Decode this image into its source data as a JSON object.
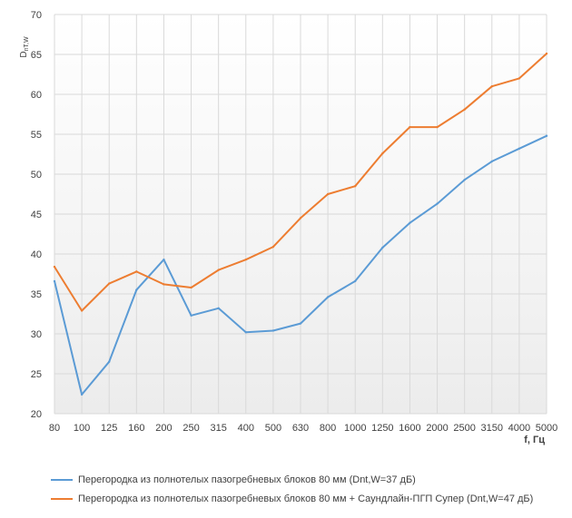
{
  "chart_data": {
    "type": "line",
    "ylabel_main": "D",
    "ylabel_sub": "nT,W",
    "xlabel": "f, Гц",
    "ylim": [
      20,
      70
    ],
    "yticks": [
      20,
      25,
      30,
      35,
      40,
      45,
      50,
      55,
      60,
      65,
      70
    ],
    "categories": [
      "80",
      "100",
      "125",
      "160",
      "200",
      "250",
      "315",
      "400",
      "500",
      "630",
      "800",
      "1000",
      "1250",
      "1600",
      "2000",
      "2500",
      "3150",
      "4000",
      "5000"
    ],
    "grid": {
      "vertical": true,
      "horizontal": true
    },
    "legend_position": "bottom",
    "series": [
      {
        "name": "Перегородка из полнотелых пазогребневых блоков 80 мм (Dnt,W=37 дБ)",
        "color": "#5b9bd5",
        "values": [
          36.6,
          22.4,
          26.5,
          35.5,
          39.3,
          32.3,
          33.2,
          30.2,
          30.4,
          31.3,
          34.6,
          36.6,
          40.8,
          43.9,
          46.3,
          49.3,
          51.6,
          53.2,
          54.8
        ]
      },
      {
        "name": "Перегородка из полнотелых пазогребневых блоков 80 мм + Саундлайн-ПГП Супер (Dnt,W=47 дБ)",
        "color": "#ed7d31",
        "values": [
          38.4,
          32.9,
          36.3,
          37.8,
          36.2,
          35.8,
          38.0,
          39.3,
          40.9,
          44.5,
          47.5,
          48.5,
          52.6,
          55.9,
          55.9,
          58.1,
          61.0,
          62.0,
          65.1
        ]
      }
    ]
  }
}
